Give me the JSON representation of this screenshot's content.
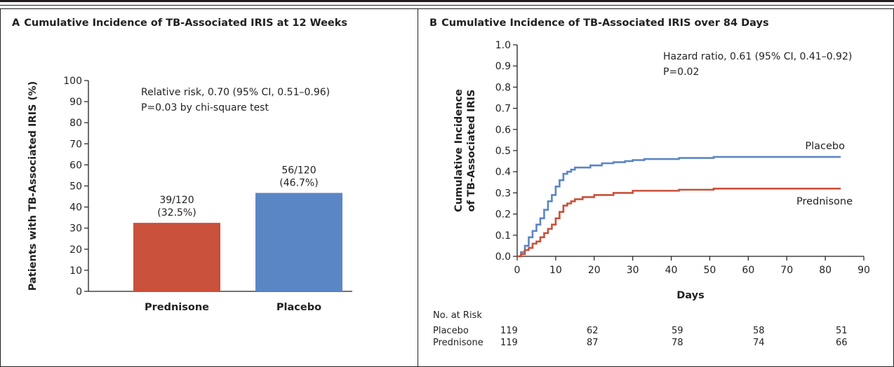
{
  "panel_a": {
    "letter": "A",
    "title": "Cumulative Incidence of TB-Associated IRIS at 12 Weeks",
    "annotation_line1": "Relative risk, 0.70 (95% CI, 0.51–0.96)",
    "annotation_line2": "P=0.03 by chi-square test"
  },
  "panel_b": {
    "letter": "B",
    "title": "Cumulative Incidence of TB-Associated IRIS over 84 Days",
    "annotation_line1": "Hazard ratio, 0.61 (95% CI, 0.41–0.92)",
    "annotation_line2": "P=0.02"
  },
  "risk_table": {
    "header": "No. at Risk",
    "rows": [
      {
        "label": "Placebo",
        "values": [
          "119",
          "62",
          "59",
          "58",
          "51"
        ]
      },
      {
        "label": "Prednisone",
        "values": [
          "119",
          "87",
          "78",
          "74",
          "66"
        ]
      }
    ]
  },
  "colors": {
    "prednisone": "#c9503a",
    "placebo": "#5b86c5",
    "axis": "#231f20"
  },
  "chart_data": [
    {
      "type": "bar",
      "title": "Cumulative Incidence of TB-Associated IRIS at 12 Weeks",
      "xlabel": "",
      "ylabel": "Patients with TB-Associated IRIS (%)",
      "ylim": [
        0,
        100
      ],
      "yticks": [
        "0",
        "10",
        "20",
        "30",
        "40",
        "50",
        "60",
        "70",
        "80",
        "90",
        "100"
      ],
      "categories": [
        "Prednisone",
        "Placebo"
      ],
      "values": [
        32.5,
        46.7
      ],
      "data_labels": [
        [
          "39/120",
          "(32.5%)"
        ],
        [
          "56/120",
          "(46.7%)"
        ]
      ],
      "grid": false
    },
    {
      "type": "line",
      "step": true,
      "title": "Cumulative Incidence of TB-Associated IRIS over 84 Days",
      "xlabel": "Days",
      "ylabel": [
        "Cumulative Incidence",
        "of TB-Associated IRIS"
      ],
      "xlim": [
        0,
        90
      ],
      "ylim": [
        0,
        1.0
      ],
      "xticks": [
        "0",
        "10",
        "20",
        "30",
        "40",
        "50",
        "60",
        "70",
        "80",
        "90"
      ],
      "yticks": [
        "0.0",
        "0.1",
        "0.2",
        "0.3",
        "0.4",
        "0.5",
        "0.6",
        "0.7",
        "0.8",
        "0.9",
        "1.0"
      ],
      "grid": false,
      "series": [
        {
          "name": "Placebo",
          "x": [
            0,
            1,
            2,
            3,
            4,
            5,
            6,
            7,
            8,
            9,
            10,
            11,
            12,
            13,
            14,
            15,
            17,
            19,
            20,
            22,
            25,
            28,
            30,
            33,
            35,
            40,
            42,
            50,
            51,
            84
          ],
          "y": [
            0,
            0.02,
            0.05,
            0.09,
            0.12,
            0.15,
            0.18,
            0.22,
            0.26,
            0.29,
            0.33,
            0.36,
            0.39,
            0.4,
            0.41,
            0.42,
            0.42,
            0.43,
            0.43,
            0.44,
            0.445,
            0.45,
            0.455,
            0.46,
            0.46,
            0.46,
            0.465,
            0.465,
            0.47,
            0.47
          ]
        },
        {
          "name": "Prednisone",
          "x": [
            0,
            1,
            2,
            3,
            4,
            5,
            6,
            7,
            8,
            9,
            10,
            11,
            12,
            13,
            14,
            15,
            17,
            20,
            25,
            30,
            35,
            42,
            51,
            84
          ],
          "y": [
            0,
            0.01,
            0.03,
            0.04,
            0.06,
            0.07,
            0.09,
            0.11,
            0.13,
            0.15,
            0.18,
            0.21,
            0.24,
            0.25,
            0.26,
            0.27,
            0.28,
            0.29,
            0.3,
            0.31,
            0.31,
            0.315,
            0.32,
            0.32
          ]
        }
      ]
    }
  ]
}
